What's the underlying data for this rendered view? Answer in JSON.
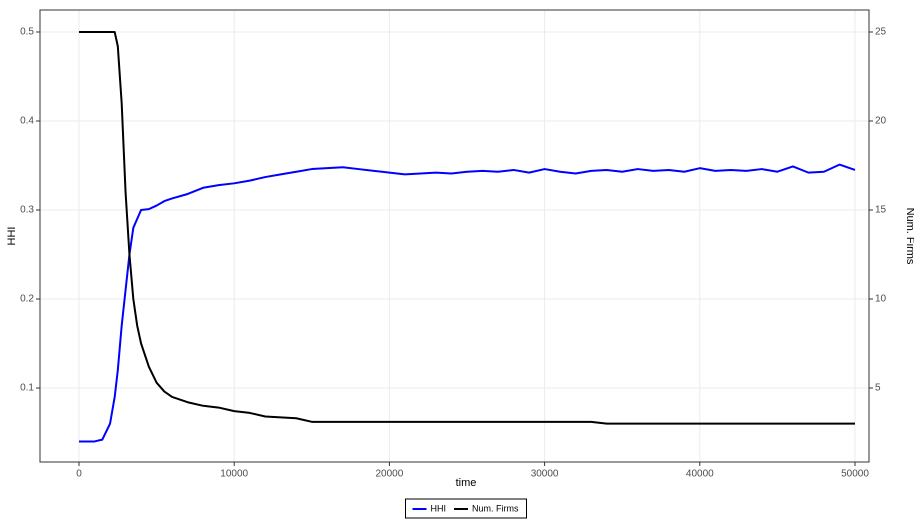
{
  "chart_data": {
    "type": "line",
    "xlabel": "time",
    "ylabel": "HHI",
    "y2label": "Num. Firms",
    "x": [
      0,
      500,
      1000,
      1500,
      2000,
      2300,
      2500,
      2750,
      3000,
      3250,
      3500,
      3750,
      4000,
      4500,
      5000,
      5500,
      6000,
      7000,
      8000,
      9000,
      10000,
      11000,
      12000,
      13000,
      14000,
      15000,
      16000,
      17000,
      18000,
      19000,
      20000,
      21000,
      22000,
      23000,
      24000,
      25000,
      26000,
      27000,
      28000,
      29000,
      30000,
      31000,
      32000,
      33000,
      34000,
      35000,
      36000,
      37000,
      38000,
      39000,
      40000,
      41000,
      42000,
      43000,
      44000,
      45000,
      46000,
      47000,
      48000,
      49000,
      50000
    ],
    "series": [
      {
        "name": "HHI",
        "color": "#0000ff",
        "axis": "y",
        "values": [
          0.04,
          0.04,
          0.04,
          0.042,
          0.06,
          0.09,
          0.12,
          0.17,
          0.21,
          0.25,
          0.28,
          0.29,
          0.3,
          0.301,
          0.305,
          0.31,
          0.313,
          0.318,
          0.325,
          0.328,
          0.33,
          0.333,
          0.337,
          0.34,
          0.343,
          0.346,
          0.347,
          0.348,
          0.346,
          0.344,
          0.342,
          0.34,
          0.341,
          0.342,
          0.341,
          0.343,
          0.344,
          0.343,
          0.345,
          0.342,
          0.346,
          0.343,
          0.341,
          0.344,
          0.345,
          0.343,
          0.346,
          0.344,
          0.345,
          0.343,
          0.347,
          0.344,
          0.345,
          0.344,
          0.346,
          0.343,
          0.349,
          0.342,
          0.343,
          0.351,
          0.345
        ]
      },
      {
        "name": "Num. Firms",
        "color": "#000000",
        "axis": "y2",
        "values": [
          25,
          25,
          25,
          25,
          25,
          25,
          24.2,
          21,
          16,
          12.5,
          10,
          8.5,
          7.5,
          6.2,
          5.3,
          4.8,
          4.5,
          4.2,
          4.0,
          3.9,
          3.7,
          3.6,
          3.4,
          3.35,
          3.3,
          3.1,
          3.1,
          3.1,
          3.1,
          3.1,
          3.1,
          3.1,
          3.1,
          3.1,
          3.1,
          3.1,
          3.1,
          3.1,
          3.1,
          3.1,
          3.1,
          3.1,
          3.1,
          3.1,
          3.0,
          3.0,
          3.0,
          3.0,
          3.0,
          3.0,
          3.0,
          3.0,
          3.0,
          3.0,
          3.0,
          3.0,
          3.0,
          3.0,
          3.0,
          3.0,
          3.0
        ]
      }
    ],
    "xlim": [
      -2513,
      50902
    ],
    "xticks": [
      0,
      10000,
      20000,
      30000,
      40000,
      50000
    ],
    "ylim": [
      0.0169,
      0.5247
    ],
    "yticks": [
      0.1,
      0.2,
      0.3,
      0.4,
      0.5
    ],
    "y2lim": [
      0.843,
      26.236
    ],
    "y2ticks": [
      5,
      10,
      15,
      20,
      25
    ],
    "grid": true,
    "legend": "bottom"
  }
}
